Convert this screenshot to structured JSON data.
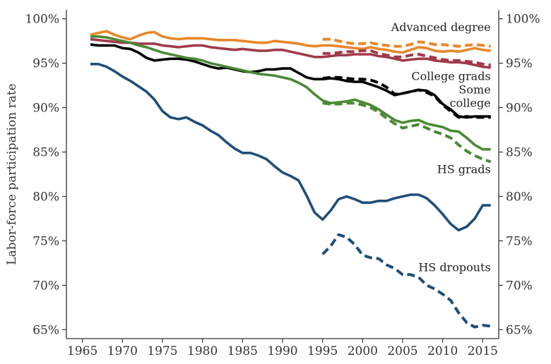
{
  "chart_data": {
    "type": "line",
    "title": "",
    "xlabel": "",
    "ylabel": "Labor-force participation rate",
    "xlim": [
      1963,
      2017
    ],
    "ylim": [
      64,
      101
    ],
    "x_ticks": [
      1965,
      1970,
      1975,
      1980,
      1985,
      1990,
      1995,
      2000,
      2005,
      2010,
      2015
    ],
    "y_ticks": [
      65,
      70,
      75,
      80,
      85,
      90,
      95,
      100
    ],
    "y_tick_labels": [
      "65%",
      "70%",
      "75%",
      "80%",
      "85%",
      "90%",
      "95%",
      "100%"
    ],
    "grid": false,
    "series": [
      {
        "name": "Advanced degree",
        "color": "#e8872a",
        "style": "solid",
        "x": [
          1966,
          1967,
          1968,
          1969,
          1970,
          1971,
          1972,
          1973,
          1974,
          1975,
          1976,
          1977,
          1978,
          1979,
          1980,
          1981,
          1982,
          1983,
          1984,
          1985,
          1986,
          1987,
          1988,
          1989,
          1990,
          1991,
          1992,
          1993,
          1994,
          1995,
          1996,
          1997,
          1998,
          1999,
          2000,
          2001,
          2002,
          2003,
          2004,
          2005,
          2006,
          2007,
          2008,
          2009,
          2010,
          2011,
          2012,
          2013,
          2014,
          2015,
          2016
        ],
        "y": [
          98.2,
          98.4,
          98.6,
          98.2,
          97.9,
          97.7,
          98.1,
          98.4,
          98.5,
          98.0,
          97.8,
          97.7,
          97.8,
          97.8,
          97.8,
          97.7,
          97.6,
          97.6,
          97.6,
          97.5,
          97.4,
          97.3,
          97.3,
          97.5,
          97.4,
          97.3,
          97.2,
          97.0,
          96.9,
          97.0,
          97.0,
          96.9,
          96.8,
          96.7,
          96.6,
          96.8,
          96.6,
          96.5,
          96.3,
          96.2,
          96.5,
          96.8,
          96.7,
          96.4,
          96.3,
          96.4,
          96.3,
          96.5,
          96.7,
          96.5,
          96.4
        ]
      },
      {
        "name": "",
        "color": "#e8872a",
        "style": "dashed",
        "x": [
          1995,
          1996,
          1997,
          1998,
          1999,
          2000,
          2001,
          2002,
          2003,
          2004,
          2005,
          2006,
          2007,
          2008,
          2009,
          2010,
          2011,
          2012,
          2013,
          2014,
          2015,
          2016
        ],
        "y": [
          97.7,
          97.7,
          97.5,
          97.3,
          97.2,
          97.2,
          97.3,
          97.1,
          97.0,
          96.9,
          96.9,
          97.1,
          97.4,
          97.3,
          97.1,
          97.1,
          97.0,
          96.9,
          97.0,
          97.1,
          97.0,
          96.9
        ]
      },
      {
        "name": "College grads",
        "color": "#a03a4a",
        "style": "solid",
        "x": [
          1966,
          1967,
          1968,
          1969,
          1970,
          1971,
          1972,
          1973,
          1974,
          1975,
          1976,
          1977,
          1978,
          1979,
          1980,
          1981,
          1982,
          1983,
          1984,
          1985,
          1986,
          1987,
          1988,
          1989,
          1990,
          1991,
          1992,
          1993,
          1994,
          1995,
          1996,
          1997,
          1998,
          1999,
          2000,
          2001,
          2002,
          2003,
          2004,
          2005,
          2006,
          2007,
          2008,
          2009,
          2010,
          2011,
          2012,
          2013,
          2014,
          2015,
          2016
        ],
        "y": [
          97.7,
          97.6,
          97.5,
          97.4,
          97.3,
          97.3,
          97.2,
          97.2,
          97.2,
          97.0,
          96.9,
          96.8,
          96.9,
          97.0,
          97.0,
          96.8,
          96.7,
          96.6,
          96.5,
          96.6,
          96.5,
          96.4,
          96.4,
          96.5,
          96.5,
          96.3,
          96.1,
          95.9,
          95.7,
          95.7,
          95.8,
          95.9,
          95.9,
          96.0,
          96.0,
          96.0,
          95.8,
          95.7,
          95.5,
          95.3,
          95.4,
          95.5,
          95.5,
          95.3,
          95.2,
          95.1,
          95.1,
          95.0,
          94.8,
          94.6,
          94.5
        ]
      },
      {
        "name": "",
        "color": "#a03a4a",
        "style": "dashed",
        "x": [
          1995,
          1996,
          1997,
          1998,
          1999,
          2000,
          2001,
          2002,
          2003,
          2004,
          2005,
          2006,
          2007,
          2008,
          2009,
          2010,
          2011,
          2012,
          2013,
          2014,
          2015,
          2016
        ],
        "y": [
          96.1,
          96.1,
          96.2,
          96.3,
          96.3,
          96.4,
          96.4,
          96.1,
          95.9,
          95.7,
          95.7,
          95.9,
          96.0,
          95.8,
          95.6,
          95.4,
          95.3,
          95.3,
          95.2,
          95.1,
          94.9,
          94.8
        ]
      },
      {
        "name": "Some college",
        "color": "#000000",
        "style": "solid",
        "x": [
          1966,
          1967,
          1968,
          1969,
          1970,
          1971,
          1972,
          1973,
          1974,
          1975,
          1976,
          1977,
          1978,
          1979,
          1980,
          1981,
          1982,
          1983,
          1984,
          1985,
          1986,
          1987,
          1988,
          1989,
          1990,
          1991,
          1992,
          1993,
          1994,
          1995,
          1996,
          1997,
          1998,
          1999,
          2000,
          2001,
          2002,
          2003,
          2004,
          2005,
          2006,
          2007,
          2008,
          2009,
          2010,
          2011,
          2012,
          2013,
          2014,
          2015,
          2016
        ],
        "y": [
          97.1,
          97.0,
          97.0,
          97.0,
          96.7,
          96.6,
          96.2,
          95.6,
          95.3,
          95.4,
          95.5,
          95.5,
          95.4,
          95.2,
          94.9,
          94.6,
          94.4,
          94.5,
          94.3,
          94.1,
          94.0,
          94.1,
          94.3,
          94.3,
          94.4,
          94.4,
          93.9,
          93.4,
          93.2,
          93.2,
          93.3,
          93.2,
          93.0,
          92.9,
          92.9,
          92.6,
          92.3,
          91.9,
          91.4,
          91.6,
          91.8,
          92.0,
          91.9,
          91.4,
          90.4,
          89.8,
          89.0,
          88.9,
          89.0,
          89.0,
          89.0
        ]
      },
      {
        "name": "",
        "color": "#000000",
        "style": "dashed",
        "x": [
          1995,
          1996,
          1997,
          1998,
          1999,
          2000,
          2001,
          2002,
          2003,
          2004,
          2005,
          2006,
          2007,
          2008,
          2009,
          2010,
          2011,
          2012,
          2013,
          2014,
          2015,
          2016
        ],
        "y": [
          93.3,
          93.4,
          93.4,
          93.3,
          93.2,
          93.2,
          93.1,
          92.8,
          92.3,
          91.5,
          91.6,
          91.8,
          92.0,
          91.7,
          91.3,
          90.3,
          89.6,
          88.9,
          89.0,
          88.9,
          88.9,
          88.9
        ]
      },
      {
        "name": "HS grads",
        "color": "#4a8a36",
        "style": "solid",
        "x": [
          1966,
          1967,
          1968,
          1969,
          1970,
          1971,
          1972,
          1973,
          1974,
          1975,
          1976,
          1977,
          1978,
          1979,
          1980,
          1981,
          1982,
          1983,
          1984,
          1985,
          1986,
          1987,
          1988,
          1989,
          1990,
          1991,
          1992,
          1993,
          1994,
          1995,
          1996,
          1997,
          1998,
          1999,
          2000,
          2001,
          2002,
          2003,
          2004,
          2005,
          2006,
          2007,
          2008,
          2009,
          2010,
          2011,
          2012,
          2013,
          2014,
          2015,
          2016
        ],
        "y": [
          98.0,
          98.0,
          97.9,
          97.7,
          97.5,
          97.3,
          97.0,
          96.8,
          96.5,
          96.2,
          96.0,
          95.8,
          95.6,
          95.5,
          95.3,
          95.0,
          94.8,
          94.6,
          94.4,
          94.2,
          94.0,
          93.8,
          93.7,
          93.6,
          93.4,
          93.2,
          92.8,
          92.3,
          91.5,
          90.8,
          90.5,
          90.6,
          90.7,
          90.9,
          90.6,
          90.3,
          89.8,
          89.2,
          88.6,
          88.3,
          88.5,
          88.6,
          88.2,
          88.0,
          87.8,
          87.4,
          87.3,
          86.6,
          85.8,
          85.3,
          85.3
        ]
      },
      {
        "name": "",
        "color": "#4a8a36",
        "style": "dashed",
        "x": [
          1995,
          1996,
          1997,
          1998,
          1999,
          2000,
          2001,
          2002,
          2003,
          2004,
          2005,
          2006,
          2007,
          2008,
          2009,
          2010,
          2011,
          2012,
          2013,
          2014,
          2015,
          2016
        ],
        "y": [
          90.5,
          90.4,
          90.4,
          90.5,
          90.5,
          90.3,
          90.0,
          89.5,
          88.8,
          88.2,
          87.7,
          87.9,
          88.1,
          87.7,
          87.3,
          87.0,
          86.6,
          85.8,
          85.1,
          84.6,
          84.2,
          83.9
        ]
      },
      {
        "name": "HS dropouts",
        "color": "#1f4e79",
        "style": "solid",
        "x": [
          1966,
          1967,
          1968,
          1969,
          1970,
          1971,
          1972,
          1973,
          1974,
          1975,
          1976,
          1977,
          1978,
          1979,
          1980,
          1981,
          1982,
          1983,
          1984,
          1985,
          1986,
          1987,
          1988,
          1989,
          1990,
          1991,
          1992,
          1993,
          1994,
          1995,
          1996,
          1997,
          1998,
          1999,
          2000,
          2001,
          2002,
          2003,
          2004,
          2005,
          2006,
          2007,
          2008,
          2009,
          2010,
          2011,
          2012,
          2013,
          2014,
          2015,
          2016
        ],
        "y": [
          94.9,
          94.9,
          94.6,
          94.1,
          93.5,
          93.0,
          92.4,
          91.8,
          90.9,
          89.6,
          88.9,
          88.7,
          88.9,
          88.4,
          88.0,
          87.4,
          86.9,
          86.1,
          85.4,
          84.9,
          84.9,
          84.6,
          84.2,
          83.4,
          82.7,
          82.3,
          81.8,
          80.1,
          78.2,
          77.4,
          78.4,
          79.7,
          80.0,
          79.7,
          79.3,
          79.3,
          79.5,
          79.5,
          79.8,
          80.0,
          80.2,
          80.2,
          79.8,
          79.0,
          78.0,
          76.9,
          76.2,
          76.6,
          77.5,
          79.0,
          79.0
        ]
      },
      {
        "name": "",
        "color": "#1f4e79",
        "style": "dashed",
        "x": [
          1995,
          1996,
          1997,
          1998,
          1999,
          2000,
          2001,
          2002,
          2003,
          2004,
          2005,
          2006,
          2007,
          2008,
          2009,
          2010,
          2011,
          2012,
          2013,
          2014,
          2015,
          2016
        ],
        "y": [
          73.5,
          74.4,
          75.7,
          75.4,
          74.6,
          73.4,
          73.1,
          73.0,
          72.3,
          71.9,
          71.2,
          71.2,
          70.9,
          70.0,
          69.6,
          69.0,
          68.3,
          66.9,
          65.8,
          65.3,
          65.5,
          65.4
        ]
      }
    ],
    "annotations": [
      {
        "text": "Advanced degree",
        "x": 2016,
        "y": 98.6,
        "anchor": "end"
      },
      {
        "text": "College grads",
        "x": 2016,
        "y": 93.1,
        "anchor": "end"
      },
      {
        "text": "Some",
        "x": 2016,
        "y": 91.6,
        "anchor": "end"
      },
      {
        "text": "college",
        "x": 2016,
        "y": 90.1,
        "anchor": "end"
      },
      {
        "text": "HS grads",
        "x": 2016,
        "y": 82.6,
        "anchor": "end"
      },
      {
        "text": "HS dropouts",
        "x": 2016,
        "y": 71.6,
        "anchor": "end"
      }
    ]
  }
}
